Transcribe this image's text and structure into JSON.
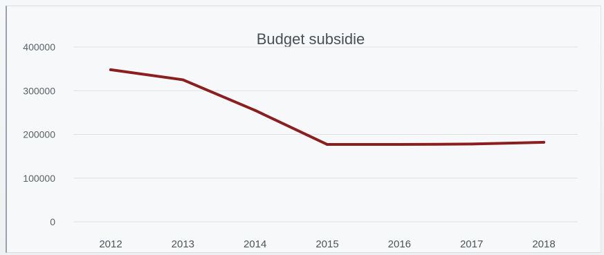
{
  "chart_data": {
    "type": "line",
    "title": "Budget subsidie",
    "xlabel": "",
    "ylabel": "",
    "categories": [
      "2012",
      "2013",
      "2014",
      "2015",
      "2016",
      "2017",
      "2018"
    ],
    "series": [
      {
        "values": [
          348000,
          325000,
          255000,
          177000,
          177000,
          178000,
          182000
        ],
        "color": "#8b1e1e"
      }
    ],
    "ylim": [
      0,
      400000
    ],
    "yticks": [
      "0",
      "100000",
      "200000",
      "300000",
      "400000"
    ],
    "grid": true,
    "legend": "none"
  }
}
